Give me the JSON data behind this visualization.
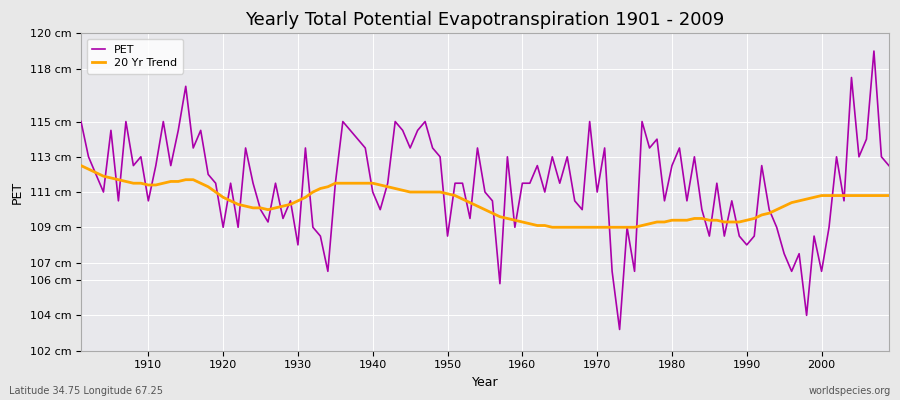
{
  "title": "Yearly Total Potential Evapotranspiration 1901 - 2009",
  "xlabel": "Year",
  "ylabel": "PET",
  "subtitle_left": "Latitude 34.75 Longitude 67.25",
  "subtitle_right": "worldspecies.org",
  "ylim": [
    102,
    120
  ],
  "ytick_positions": [
    102,
    104,
    106,
    107,
    109,
    111,
    113,
    115,
    118,
    120
  ],
  "ytick_labels": [
    "102 cm",
    "104 cm",
    "106 cm",
    "107 cm",
    "109 cm",
    "111 cm",
    "113 cm",
    "115 cm",
    "118 cm",
    "120 cm"
  ],
  "xtick_positions": [
    1910,
    1920,
    1930,
    1940,
    1950,
    1960,
    1970,
    1980,
    1990,
    2000
  ],
  "years": [
    1901,
    1902,
    1903,
    1904,
    1905,
    1906,
    1907,
    1908,
    1909,
    1910,
    1911,
    1912,
    1913,
    1914,
    1915,
    1916,
    1917,
    1918,
    1919,
    1920,
    1921,
    1922,
    1923,
    1924,
    1925,
    1926,
    1927,
    1928,
    1929,
    1930,
    1931,
    1932,
    1933,
    1934,
    1935,
    1936,
    1937,
    1938,
    1939,
    1940,
    1941,
    1942,
    1943,
    1944,
    1945,
    1946,
    1947,
    1948,
    1949,
    1950,
    1951,
    1952,
    1953,
    1954,
    1955,
    1956,
    1957,
    1958,
    1959,
    1960,
    1961,
    1962,
    1963,
    1964,
    1965,
    1966,
    1967,
    1968,
    1969,
    1970,
    1971,
    1972,
    1973,
    1974,
    1975,
    1976,
    1977,
    1978,
    1979,
    1980,
    1981,
    1982,
    1983,
    1984,
    1985,
    1986,
    1987,
    1988,
    1989,
    1990,
    1991,
    1992,
    1993,
    1994,
    1995,
    1996,
    1997,
    1998,
    1999,
    2000,
    2001,
    2002,
    2003,
    2004,
    2005,
    2006,
    2007,
    2008,
    2009
  ],
  "pet": [
    115.0,
    113.0,
    112.0,
    111.0,
    114.5,
    110.5,
    115.0,
    112.5,
    113.0,
    110.5,
    112.5,
    115.0,
    112.5,
    114.5,
    117.0,
    113.5,
    114.5,
    112.0,
    111.5,
    109.0,
    111.5,
    109.0,
    113.5,
    111.5,
    110.0,
    109.3,
    111.5,
    109.5,
    110.5,
    108.0,
    113.5,
    109.0,
    108.5,
    106.5,
    111.5,
    115.0,
    114.5,
    114.0,
    113.5,
    111.0,
    110.0,
    111.5,
    115.0,
    114.5,
    113.5,
    114.5,
    115.0,
    113.5,
    113.0,
    108.5,
    111.5,
    111.5,
    109.5,
    113.5,
    111.0,
    110.5,
    105.8,
    113.0,
    109.0,
    111.5,
    111.5,
    112.5,
    111.0,
    113.0,
    111.5,
    113.0,
    110.5,
    110.0,
    115.0,
    111.0,
    113.5,
    106.5,
    103.2,
    109.0,
    106.5,
    115.0,
    113.5,
    114.0,
    110.5,
    112.5,
    113.5,
    110.5,
    113.0,
    110.0,
    108.5,
    111.5,
    108.5,
    110.5,
    108.5,
    108.0,
    108.5,
    112.5,
    110.0,
    109.0,
    107.5,
    106.5,
    107.5,
    104.0,
    108.5,
    106.5,
    109.0,
    113.0,
    110.5,
    117.5,
    113.0,
    114.0,
    119.0,
    113.0,
    112.5
  ],
  "trend": [
    112.5,
    112.3,
    112.1,
    111.9,
    111.8,
    111.7,
    111.6,
    111.5,
    111.5,
    111.4,
    111.4,
    111.5,
    111.6,
    111.6,
    111.7,
    111.7,
    111.5,
    111.3,
    111.0,
    110.7,
    110.5,
    110.3,
    110.2,
    110.1,
    110.1,
    110.0,
    110.1,
    110.2,
    110.3,
    110.5,
    110.7,
    111.0,
    111.2,
    111.3,
    111.5,
    111.5,
    111.5,
    111.5,
    111.5,
    111.5,
    111.4,
    111.3,
    111.2,
    111.1,
    111.0,
    111.0,
    111.0,
    111.0,
    111.0,
    110.9,
    110.8,
    110.6,
    110.4,
    110.2,
    110.0,
    109.8,
    109.6,
    109.5,
    109.4,
    109.3,
    109.2,
    109.1,
    109.1,
    109.0,
    109.0,
    109.0,
    109.0,
    109.0,
    109.0,
    109.0,
    109.0,
    109.0,
    109.0,
    109.0,
    109.0,
    109.1,
    109.2,
    109.3,
    109.3,
    109.4,
    109.4,
    109.4,
    109.5,
    109.5,
    109.4,
    109.4,
    109.3,
    109.3,
    109.3,
    109.4,
    109.5,
    109.7,
    109.8,
    110.0,
    110.2,
    110.4,
    110.5,
    110.6,
    110.7,
    110.8,
    110.8,
    110.8,
    110.8,
    110.8,
    110.8,
    110.8,
    110.8,
    110.8,
    110.8
  ],
  "pet_color": "#AA00AA",
  "trend_color": "#FFA500",
  "fig_bg_color": "#E8E8E8",
  "plot_bg_color": "#E8E8EC",
  "grid_color": "#FFFFFF",
  "spine_color": "#AAAAAA",
  "title_fontsize": 13,
  "axis_label_fontsize": 9,
  "tick_fontsize": 8,
  "legend_fontsize": 8,
  "pet_linewidth": 1.2,
  "trend_linewidth": 2.0,
  "grid_linewidth": 0.7,
  "legend_pet_label": "PET",
  "legend_trend_label": "20 Yr Trend"
}
